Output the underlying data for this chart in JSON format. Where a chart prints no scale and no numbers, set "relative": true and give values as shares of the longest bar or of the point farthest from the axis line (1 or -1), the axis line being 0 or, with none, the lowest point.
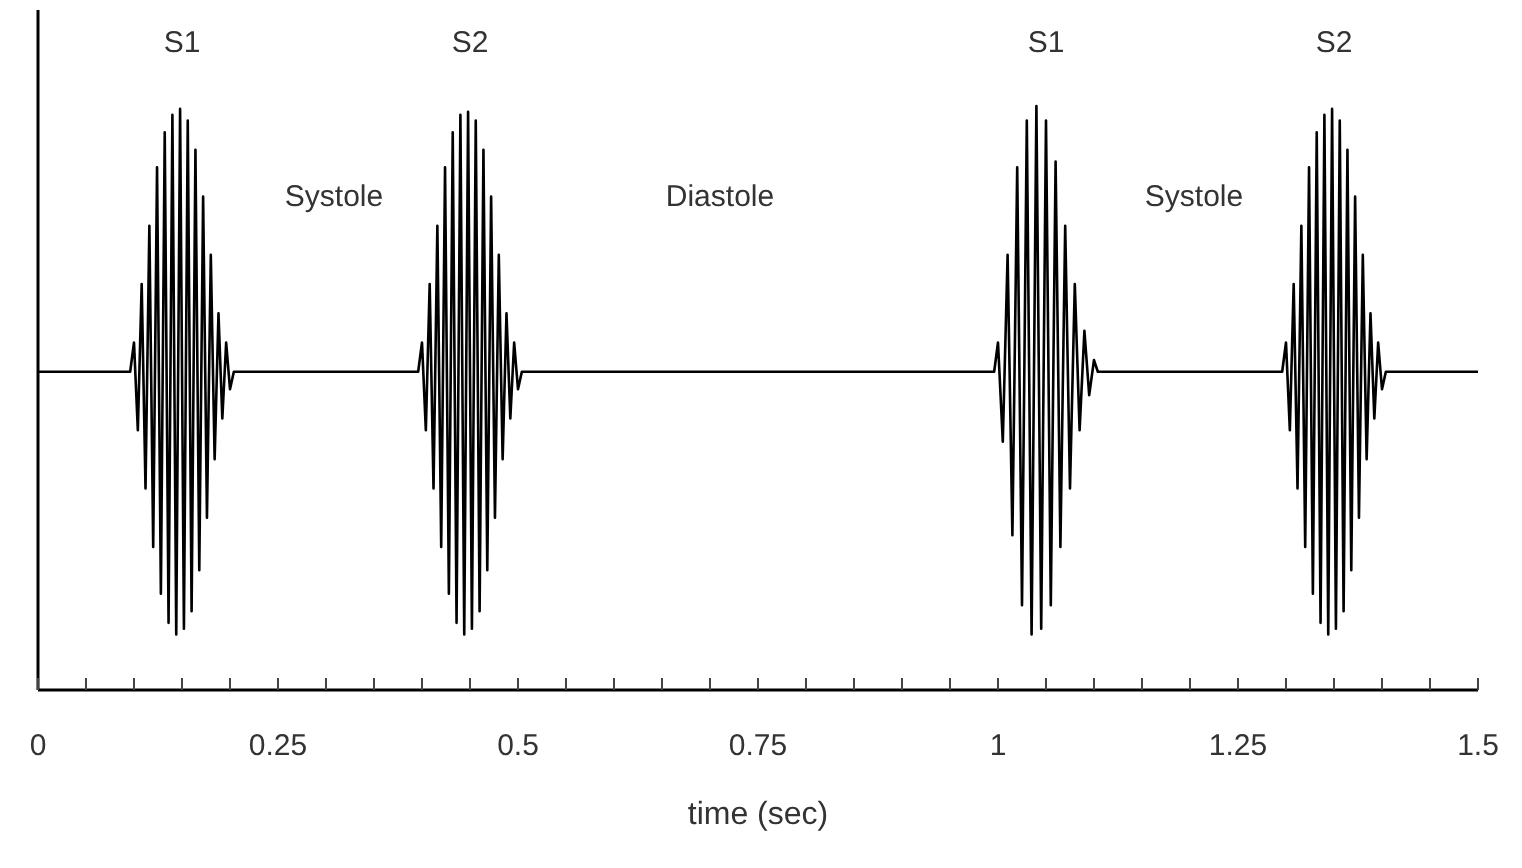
{
  "chart_data": {
    "type": "line",
    "relative": true,
    "xlabel": "time (sec)",
    "xlim": [
      0,
      1.5
    ],
    "xticks": [
      0,
      {
        "value": 0.05,
        "label": null
      },
      {
        "value": 0.1,
        "label": null
      },
      {
        "value": 0.15,
        "label": null
      },
      {
        "value": 0.2,
        "label": null
      },
      0.25,
      {
        "value": 0.3,
        "label": null
      },
      {
        "value": 0.35,
        "label": null
      },
      {
        "value": 0.4,
        "label": null
      },
      {
        "value": 0.45,
        "label": null
      },
      0.5,
      {
        "value": 0.55,
        "label": null
      },
      {
        "value": 0.6,
        "label": null
      },
      {
        "value": 0.65,
        "label": null
      },
      {
        "value": 0.7,
        "label": null
      },
      0.75,
      {
        "value": 0.8,
        "label": null
      },
      {
        "value": 0.85,
        "label": null
      },
      {
        "value": 0.9,
        "label": null
      },
      {
        "value": 0.95,
        "label": null
      },
      1,
      {
        "value": 1.05,
        "label": null
      },
      {
        "value": 1.1,
        "label": null
      },
      {
        "value": 1.15,
        "label": null
      },
      {
        "value": 1.2,
        "label": null
      },
      1.25,
      {
        "value": 1.3,
        "label": null
      },
      {
        "value": 1.35,
        "label": null
      },
      {
        "value": 1.4,
        "label": null
      },
      {
        "value": 1.45,
        "label": null
      },
      1.5
    ],
    "annotations": [
      "S1",
      "S2",
      "S1",
      "S2",
      "Systole",
      "Diastole",
      "Systole"
    ],
    "series": [
      {
        "color": "#000000",
        "x": [
          0,
          0.096,
          0.1,
          0.104,
          0.108,
          0.112,
          0.116,
          0.12,
          0.124,
          0.128,
          0.132,
          0.136,
          0.14,
          0.144,
          0.148,
          0.152,
          0.156,
          0.16,
          0.164,
          0.168,
          0.172,
          0.176,
          0.18,
          0.184,
          0.188,
          0.192,
          0.196,
          0.2,
          0.204,
          0.396,
          0.4,
          0.404,
          0.408,
          0.412,
          0.416,
          0.42,
          0.424,
          0.428,
          0.432,
          0.436,
          0.44,
          0.444,
          0.448,
          0.452,
          0.456,
          0.46,
          0.464,
          0.468,
          0.472,
          0.476,
          0.48,
          0.484,
          0.488,
          0.492,
          0.496,
          0.5,
          0.504,
          0.996,
          1,
          1.005,
          1.01,
          1.015,
          1.02,
          1.025,
          1.03,
          1.035,
          1.04,
          1.045,
          1.05,
          1.055,
          1.06,
          1.065,
          1.07,
          1.075,
          1.08,
          1.085,
          1.09,
          1.095,
          1.1,
          1.104,
          1.296,
          1.3,
          1.304,
          1.308,
          1.312,
          1.316,
          1.32,
          1.324,
          1.328,
          1.332,
          1.336,
          1.34,
          1.344,
          1.348,
          1.352,
          1.356,
          1.36,
          1.364,
          1.368,
          1.372,
          1.376,
          1.38,
          1.384,
          1.388,
          1.392,
          1.396,
          1.4,
          1.404,
          1.5
        ],
        "values": [
          0.545,
          0.545,
          0.595,
          0.445,
          0.695,
          0.345,
          0.795,
          0.245,
          0.895,
          0.165,
          0.955,
          0.115,
          0.985,
          0.095,
          0.995,
          0.105,
          0.975,
          0.135,
          0.925,
          0.205,
          0.845,
          0.295,
          0.745,
          0.395,
          0.645,
          0.465,
          0.595,
          0.515,
          0.545,
          0.545,
          0.595,
          0.445,
          0.695,
          0.345,
          0.795,
          0.245,
          0.895,
          0.165,
          0.955,
          0.115,
          0.985,
          0.095,
          0.99,
          0.105,
          0.975,
          0.135,
          0.925,
          0.205,
          0.845,
          0.295,
          0.745,
          0.395,
          0.645,
          0.465,
          0.595,
          0.515,
          0.545,
          0.545,
          0.595,
          0.425,
          0.745,
          0.265,
          0.895,
          0.145,
          0.975,
          0.095,
          1.0,
          0.105,
          0.975,
          0.145,
          0.905,
          0.245,
          0.795,
          0.345,
          0.695,
          0.445,
          0.615,
          0.505,
          0.565,
          0.545,
          0.545,
          0.595,
          0.445,
          0.695,
          0.345,
          0.795,
          0.245,
          0.895,
          0.165,
          0.955,
          0.115,
          0.985,
          0.095,
          0.995,
          0.105,
          0.975,
          0.135,
          0.925,
          0.205,
          0.845,
          0.295,
          0.745,
          0.395,
          0.645,
          0.465,
          0.595,
          0.515,
          0.545,
          0.545
        ]
      }
    ]
  }
}
